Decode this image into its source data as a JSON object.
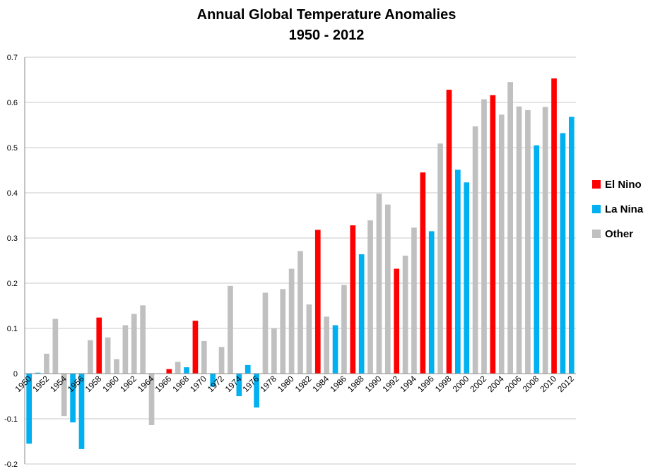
{
  "chart_data": {
    "type": "bar",
    "title": "Annual Global Temperature Anomalies",
    "subtitle": "1950 - 2012",
    "xlabel": "",
    "ylabel": "",
    "ylim": [
      -0.2,
      0.7
    ],
    "yticks": [
      "-0.2",
      "-0.1",
      "0",
      "0.1",
      "0.2",
      "0.3",
      "0.4",
      "0.5",
      "0.6",
      "0.7"
    ],
    "grid": true,
    "legend_position": "right",
    "legend": [
      {
        "key": "elnino",
        "label": "El Nino",
        "color": "#ff0000"
      },
      {
        "key": "lanina",
        "label": "La Nina",
        "color": "#00b0f0"
      },
      {
        "key": "other",
        "label": "Other",
        "color": "#c0c0c0"
      }
    ],
    "x": [
      1950,
      1951,
      1952,
      1953,
      1954,
      1955,
      1956,
      1957,
      1958,
      1959,
      1960,
      1961,
      1962,
      1963,
      1964,
      1965,
      1966,
      1967,
      1968,
      1969,
      1970,
      1971,
      1972,
      1973,
      1974,
      1975,
      1976,
      1977,
      1978,
      1979,
      1980,
      1981,
      1982,
      1983,
      1984,
      1985,
      1986,
      1987,
      1988,
      1989,
      1990,
      1991,
      1992,
      1993,
      1994,
      1995,
      1996,
      1997,
      1998,
      1999,
      2000,
      2001,
      2002,
      2003,
      2004,
      2005,
      2006,
      2007,
      2008,
      2009,
      2010,
      2011,
      2012
    ],
    "values": [
      -0.155,
      0.002,
      0.044,
      0.121,
      -0.094,
      -0.108,
      -0.167,
      0.074,
      0.124,
      0.08,
      0.032,
      0.107,
      0.132,
      0.151,
      -0.114,
      -0.001,
      0.01,
      0.026,
      0.014,
      0.117,
      0.072,
      -0.029,
      0.059,
      0.194,
      -0.05,
      0.019,
      -0.075,
      0.179,
      0.1,
      0.187,
      0.232,
      0.271,
      0.153,
      0.318,
      0.126,
      0.107,
      0.196,
      0.328,
      0.264,
      0.339,
      0.398,
      0.374,
      0.232,
      0.261,
      0.323,
      0.445,
      0.315,
      0.509,
      0.628,
      0.451,
      0.423,
      0.547,
      0.607,
      0.616,
      0.573,
      0.645,
      0.591,
      0.583,
      0.505,
      0.59,
      0.653,
      0.532,
      0.568
    ],
    "categories": [
      "lanina",
      "lanina",
      "other",
      "other",
      "other",
      "lanina",
      "lanina",
      "other",
      "elnino",
      "other",
      "other",
      "other",
      "other",
      "other",
      "other",
      "other",
      "elnino",
      "other",
      "lanina",
      "elnino",
      "other",
      "lanina",
      "other",
      "other",
      "lanina",
      "lanina",
      "lanina",
      "other",
      "other",
      "other",
      "other",
      "other",
      "other",
      "elnino",
      "other",
      "lanina",
      "other",
      "elnino",
      "lanina",
      "other",
      "other",
      "other",
      "elnino",
      "other",
      "other",
      "elnino",
      "lanina",
      "other",
      "elnino",
      "lanina",
      "lanina",
      "other",
      "other",
      "elnino",
      "other",
      "other",
      "other",
      "other",
      "lanina",
      "other",
      "elnino",
      "lanina",
      "lanina"
    ],
    "xtick_labels": [
      "1950",
      "1952",
      "1954",
      "1956",
      "1958",
      "1960",
      "1962",
      "1964",
      "1966",
      "1968",
      "1970",
      "1972",
      "1974",
      "1976",
      "1978",
      "1980",
      "1982",
      "1984",
      "1986",
      "1988",
      "1990",
      "1992",
      "1994",
      "1996",
      "1998",
      "2000",
      "2002",
      "2004",
      "2006",
      "2008",
      "2010",
      "2012"
    ]
  }
}
